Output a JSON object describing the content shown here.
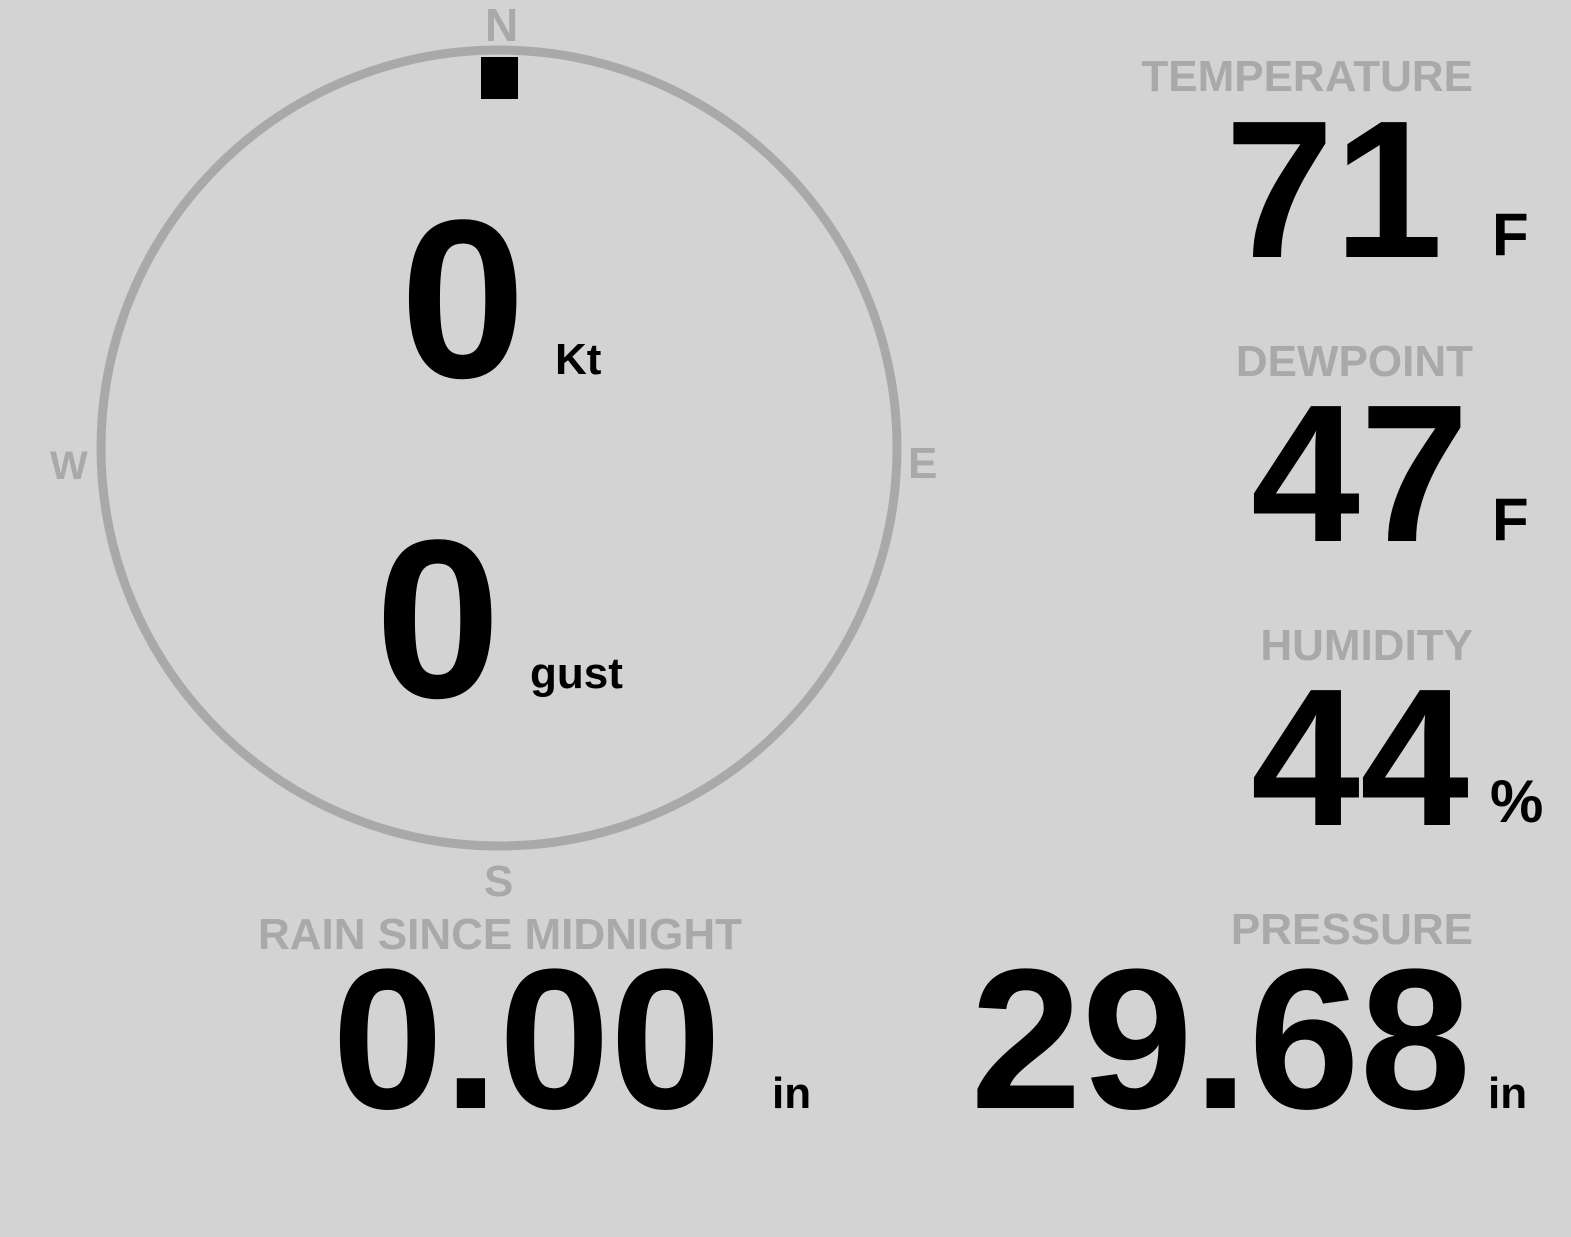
{
  "compass": {
    "n": "N",
    "e": "E",
    "s": "S",
    "w": "W",
    "direction_deg": 0,
    "ring_color": "#a9a9a9"
  },
  "wind": {
    "speed": "0",
    "speed_unit": "Kt",
    "gust": "0",
    "gust_unit": "gust"
  },
  "temperature": {
    "label": "TEMPERATURE",
    "value": "71",
    "unit": "F"
  },
  "dewpoint": {
    "label": "DEWPOINT",
    "value": "47",
    "unit": "F"
  },
  "humidity": {
    "label": "HUMIDITY",
    "value": "44",
    "unit": "%"
  },
  "rain": {
    "label": "RAIN SINCE MIDNIGHT",
    "value": "0.00",
    "unit": "in"
  },
  "pressure": {
    "label": "PRESSURE",
    "value": "29.68",
    "unit": "in"
  },
  "colors": {
    "background": "#d3d3d3",
    "label": "#a9a9a9",
    "value": "#000000"
  }
}
